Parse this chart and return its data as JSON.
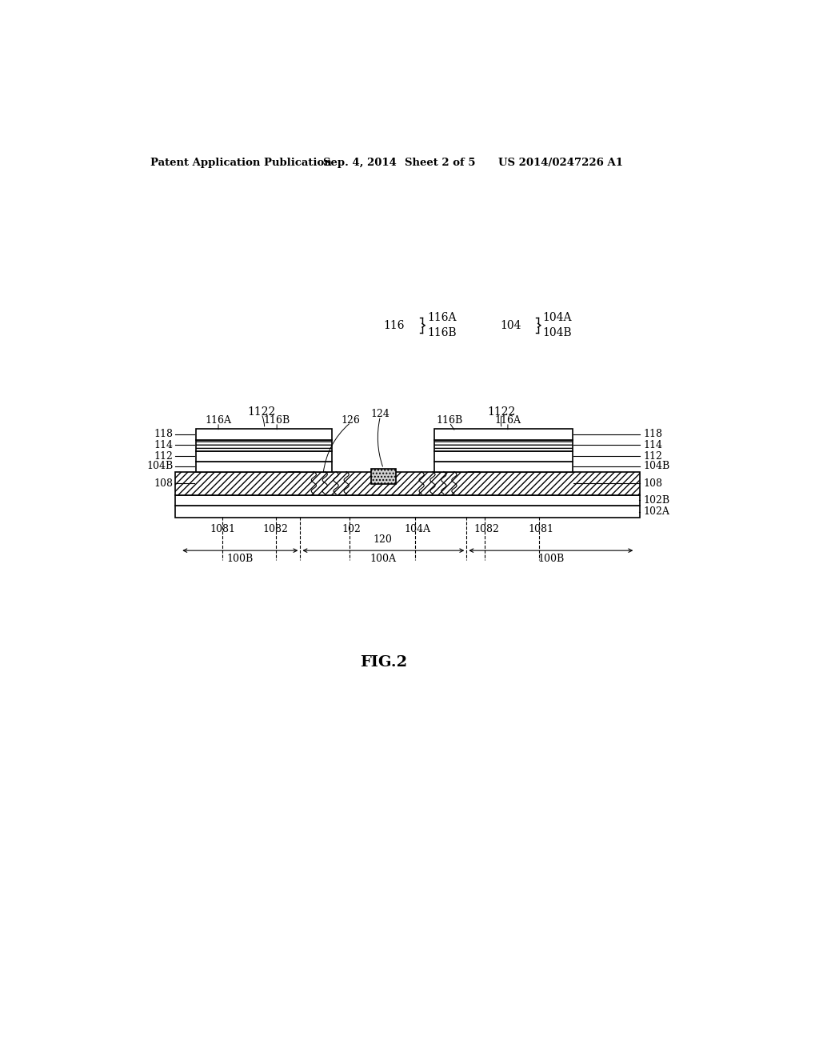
{
  "bg_color": "#ffffff",
  "header_text": "Patent Application Publication",
  "header_date": "Sep. 4, 2014",
  "header_sheet": "Sheet 2 of 5",
  "header_patent": "US 2014/0247226 A1",
  "fig_label": "FIG.2"
}
